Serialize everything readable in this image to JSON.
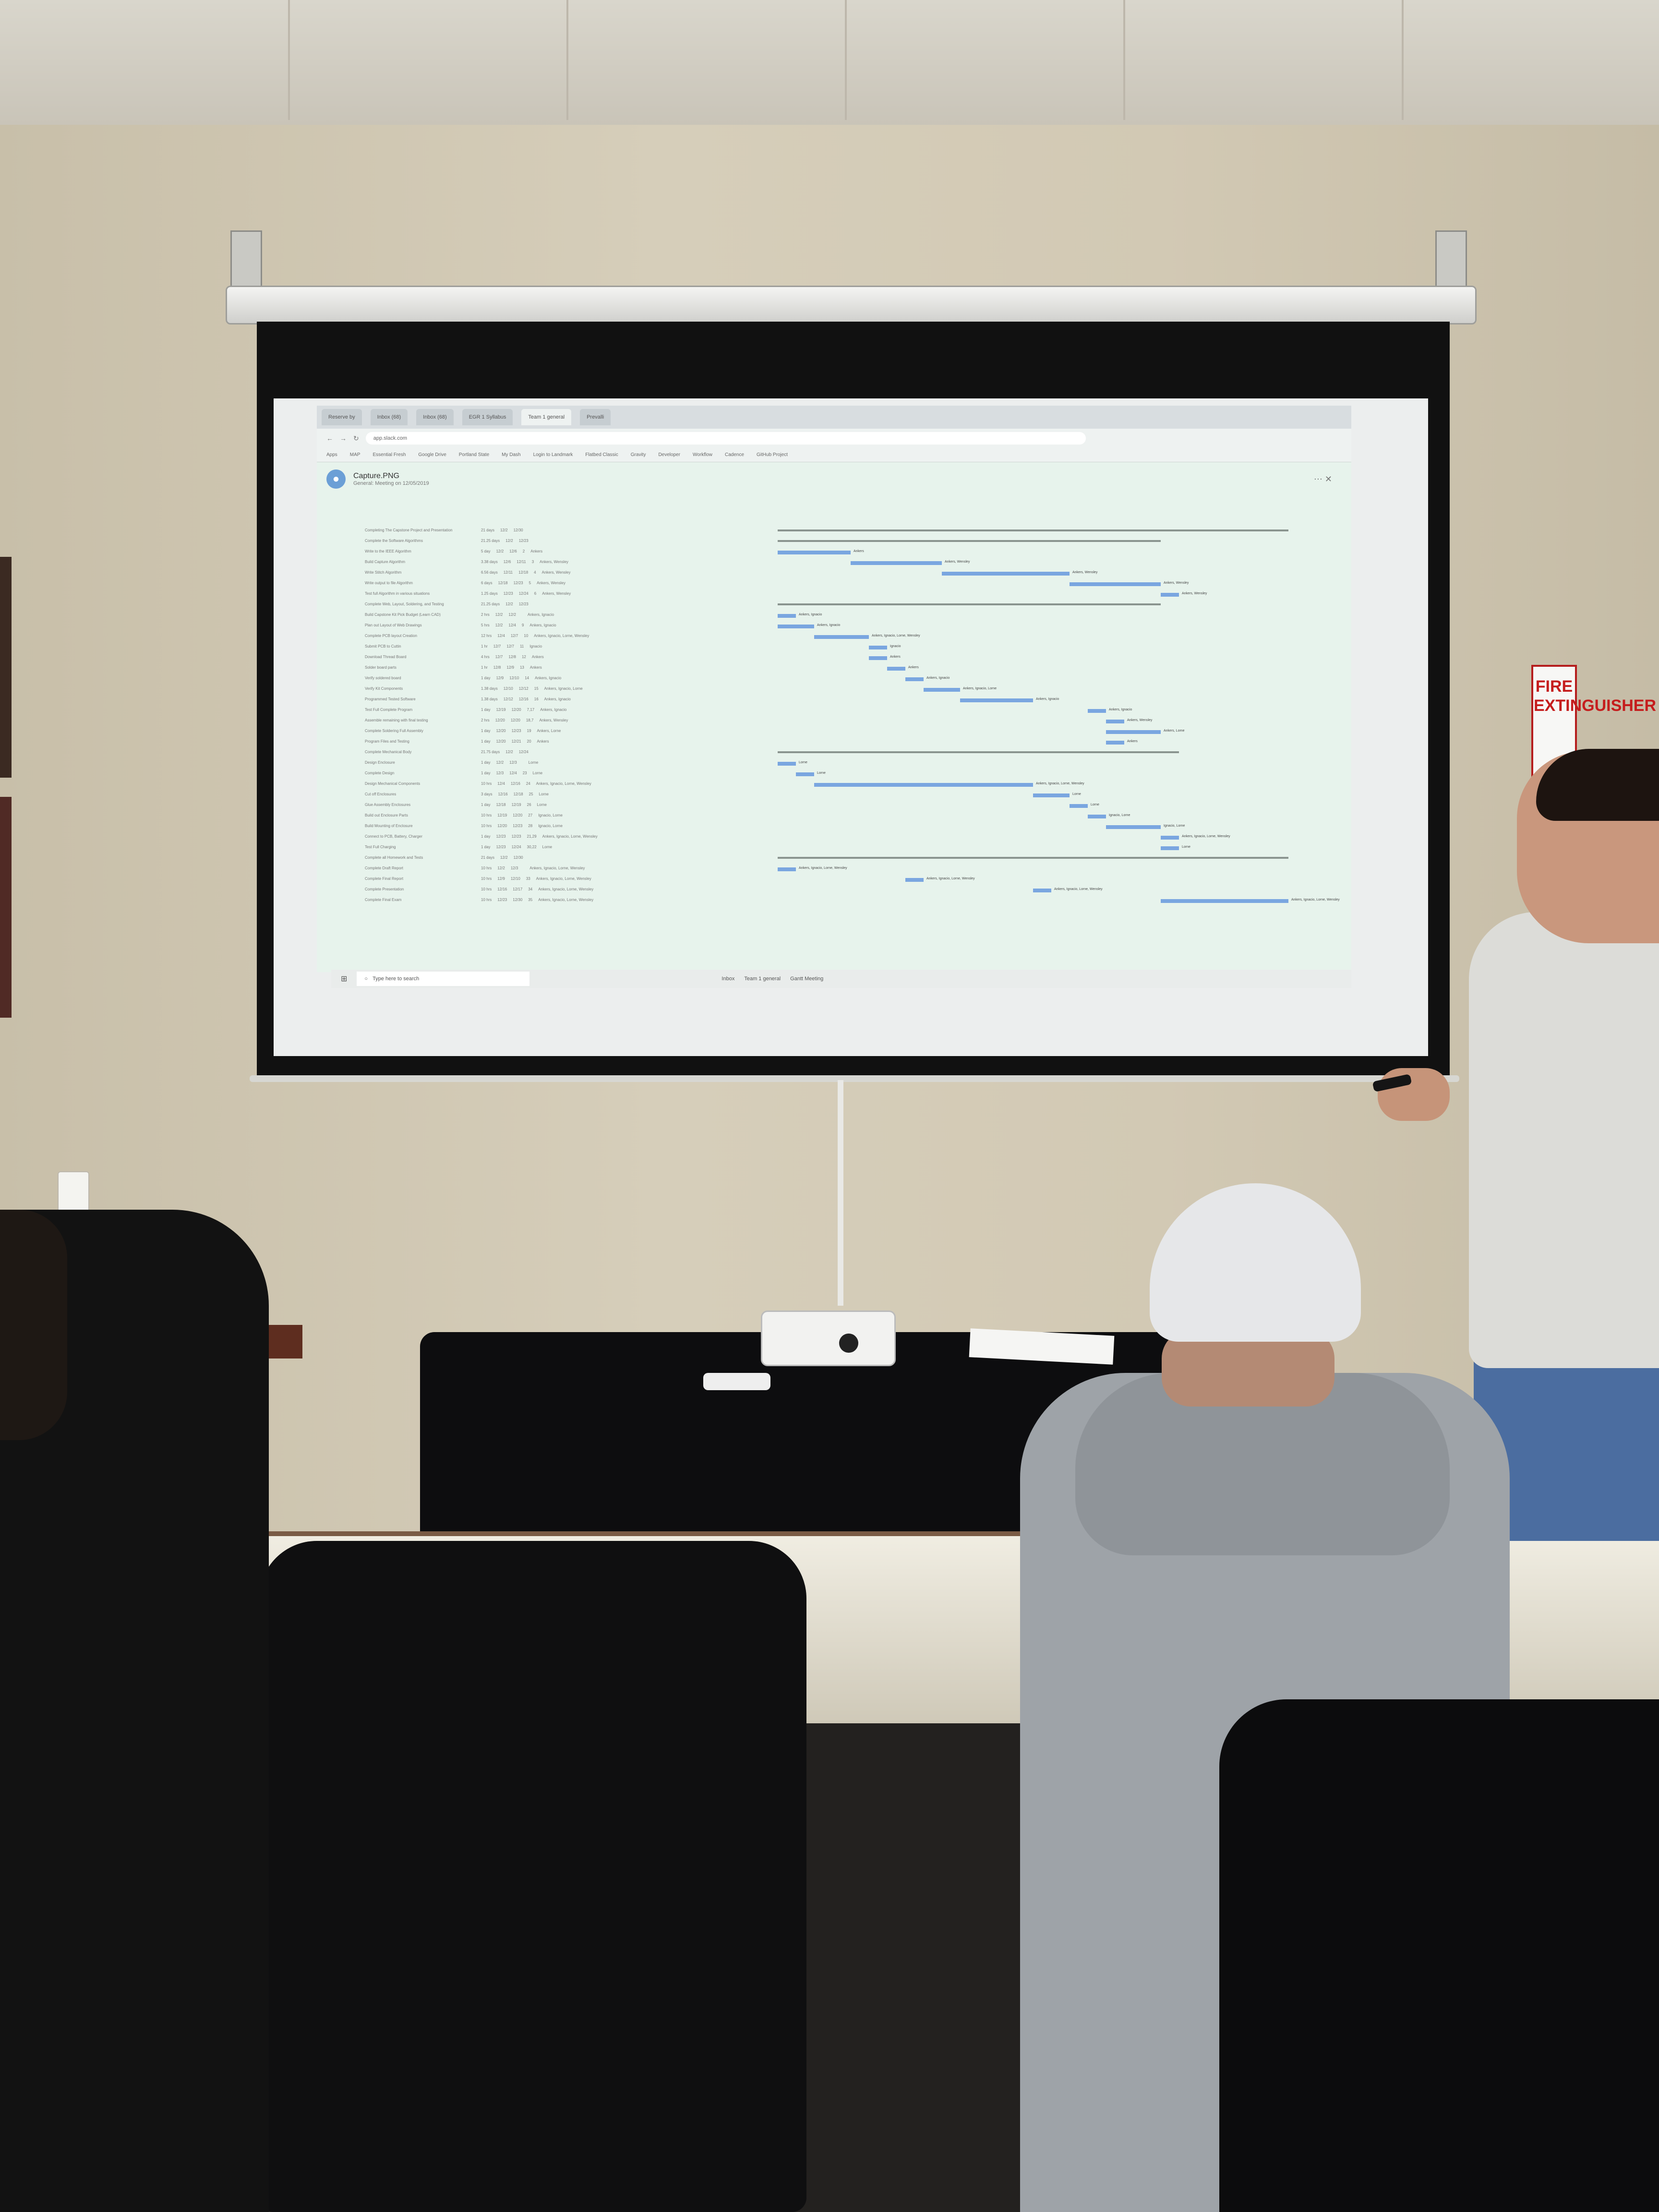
{
  "screen": {
    "tabs": [
      "Reserve by",
      "Inbox (68)",
      "Inbox (68)",
      "EGR 1 Syllabus",
      "Team 1 general",
      "Prevalli"
    ],
    "address": "app.slack.com",
    "bookmarks": [
      "Apps",
      "MAP",
      "Essential Fresh",
      "Google Drive",
      "Portland State",
      "My Dash",
      "Login to Landmark",
      "Flatbed Classic",
      "Gravity",
      "Developer",
      "Workflow",
      "Cadence",
      "GitHub Project"
    ],
    "file_title": "Capture.PNG",
    "file_subtitle": "General: Meeting on 12/05/2019",
    "taskbar_search": "Type here to search",
    "taskbar_apps": [
      "Inbox",
      "Team 1 general",
      "Gantt Meeting"
    ]
  },
  "gantt": {
    "rows": [
      {
        "name": "Completing The Capstone Project and Presentation",
        "dur": "21 days",
        "start": "12/2",
        "finish": "12/30",
        "pred": "",
        "res": ""
      },
      {
        "name": "Complete the Software Algorithms",
        "dur": "21.25 days",
        "start": "12/2",
        "finish": "12/23",
        "pred": "",
        "res": ""
      },
      {
        "name": "Write to the IEEE Algorithm",
        "dur": "5 day",
        "start": "12/2",
        "finish": "12/6",
        "pred": "2",
        "res": "Ankers"
      },
      {
        "name": "Build Capture Algorithm",
        "dur": "3.38 days",
        "start": "12/6",
        "finish": "12/11",
        "pred": "3",
        "res": "Ankers, Wensley"
      },
      {
        "name": "Write Stitch Algorithm",
        "dur": "6.56 days",
        "start": "12/11",
        "finish": "12/18",
        "pred": "4",
        "res": "Ankers, Wensley"
      },
      {
        "name": "Write output to file Algorithm",
        "dur": "6 days",
        "start": "12/18",
        "finish": "12/23",
        "pred": "5",
        "res": "Ankers, Wensley"
      },
      {
        "name": "Test full Algorithm in various situations",
        "dur": "1.25 days",
        "start": "12/23",
        "finish": "12/24",
        "pred": "6",
        "res": "Ankers, Wensley"
      },
      {
        "name": "Complete Web, Layout, Soldering, and Testing",
        "dur": "21.25 days",
        "start": "12/2",
        "finish": "12/23",
        "pred": "",
        "res": ""
      },
      {
        "name": "Build Capstone Kit Pick Budget (Learn CAD)",
        "dur": "2 hrs",
        "start": "12/2",
        "finish": "12/2",
        "pred": "",
        "res": "Ankers, Ignacio"
      },
      {
        "name": "Plan out Layout of Web Drawings",
        "dur": "5 hrs",
        "start": "12/2",
        "finish": "12/4",
        "pred": "9",
        "res": "Ankers, Ignacio"
      },
      {
        "name": "Complete PCB layout Creation",
        "dur": "12 hrs",
        "start": "12/4",
        "finish": "12/7",
        "pred": "10",
        "res": "Ankers, Ignacio, Lorne, Wensley"
      },
      {
        "name": "Submit PCB to Cuttin",
        "dur": "1 hr",
        "start": "12/7",
        "finish": "12/7",
        "pred": "11",
        "res": "Ignacio"
      },
      {
        "name": "Download Thread Board",
        "dur": "4 hrs",
        "start": "12/7",
        "finish": "12/8",
        "pred": "12",
        "res": "Ankers"
      },
      {
        "name": "Solder board parts",
        "dur": "1 hr",
        "start": "12/8",
        "finish": "12/9",
        "pred": "13",
        "res": "Ankers"
      },
      {
        "name": "Verify soldered board",
        "dur": "1 day",
        "start": "12/9",
        "finish": "12/10",
        "pred": "14",
        "res": "Ankers, Ignacio"
      },
      {
        "name": "Verify Kit Components",
        "dur": "1.38 days",
        "start": "12/10",
        "finish": "12/12",
        "pred": "15",
        "res": "Ankers, Ignacio, Lorne"
      },
      {
        "name": "Programmed Tested Software",
        "dur": "1.38 days",
        "start": "12/12",
        "finish": "12/16",
        "pred": "16",
        "res": "Ankers, Ignacio"
      },
      {
        "name": "Test Full Complete Program",
        "dur": "1 day",
        "start": "12/19",
        "finish": "12/20",
        "pred": "7,17",
        "res": "Ankers, Ignacio"
      },
      {
        "name": "Assemble remaining with final testing",
        "dur": "2 hrs",
        "start": "12/20",
        "finish": "12/20",
        "pred": "18,7",
        "res": "Ankers, Wensley"
      },
      {
        "name": "Complete Soldering Full Assembly",
        "dur": "1 day",
        "start": "12/20",
        "finish": "12/23",
        "pred": "19",
        "res": "Ankers, Lorne"
      },
      {
        "name": "Program Files and Testing",
        "dur": "1 day",
        "start": "12/20",
        "finish": "12/21",
        "pred": "20",
        "res": "Ankers"
      },
      {
        "name": "Complete Mechanical Body",
        "dur": "21.75 days",
        "start": "12/2",
        "finish": "12/24",
        "pred": "",
        "res": ""
      },
      {
        "name": "Design Enclosure",
        "dur": "1 day",
        "start": "12/2",
        "finish": "12/3",
        "pred": "",
        "res": "Lorne"
      },
      {
        "name": "Complete Design",
        "dur": "1 day",
        "start": "12/3",
        "finish": "12/4",
        "pred": "23",
        "res": "Lorne"
      },
      {
        "name": "Design Mechanical Components",
        "dur": "10 hrs",
        "start": "12/4",
        "finish": "12/16",
        "pred": "24",
        "res": "Ankers, Ignacio, Lorne, Wensley"
      },
      {
        "name": "Cut off Enclosures",
        "dur": "3 days",
        "start": "12/16",
        "finish": "12/18",
        "pred": "25",
        "res": "Lorne"
      },
      {
        "name": "Glue Assembly Enclosures",
        "dur": "1 day",
        "start": "12/18",
        "finish": "12/19",
        "pred": "26",
        "res": "Lorne"
      },
      {
        "name": "Build out Enclosure Parts",
        "dur": "10 hrs",
        "start": "12/19",
        "finish": "12/20",
        "pred": "27",
        "res": "Ignacio, Lorne"
      },
      {
        "name": "Build Mounting of Enclosure",
        "dur": "10 hrs",
        "start": "12/20",
        "finish": "12/23",
        "pred": "28",
        "res": "Ignacio, Lorne"
      },
      {
        "name": "Connect to PCB, Battery, Charger",
        "dur": "1 day",
        "start": "12/23",
        "finish": "12/23",
        "pred": "21,29",
        "res": "Ankers, Ignacio, Lorne, Wensley"
      },
      {
        "name": "Test Full Charging",
        "dur": "1 day",
        "start": "12/23",
        "finish": "12/24",
        "pred": "30,22",
        "res": "Lorne"
      },
      {
        "name": "Complete all Homework and Tests",
        "dur": "21 days",
        "start": "12/2",
        "finish": "12/30",
        "pred": "",
        "res": ""
      },
      {
        "name": "Complete Draft Report",
        "dur": "10 hrs",
        "start": "12/2",
        "finish": "12/3",
        "pred": "",
        "res": "Ankers, Ignacio, Lorne, Wensley"
      },
      {
        "name": "Complete Final Report",
        "dur": "10 hrs",
        "start": "12/9",
        "finish": "12/10",
        "pred": "33",
        "res": "Ankers, Ignacio, Lorne, Wensley"
      },
      {
        "name": "Complete Presentation",
        "dur": "10 hrs",
        "start": "12/16",
        "finish": "12/17",
        "pred": "34",
        "res": "Ankers, Ignacio, Lorne, Wensley"
      },
      {
        "name": "Complete Final Exam",
        "dur": "10 hrs",
        "start": "12/23",
        "finish": "12/30",
        "pred": "35",
        "res": "Ankers, Ignacio, Lorne, Wensley"
      }
    ]
  },
  "wall": {
    "sign_text": "FIRE EXTINGUISHER"
  }
}
